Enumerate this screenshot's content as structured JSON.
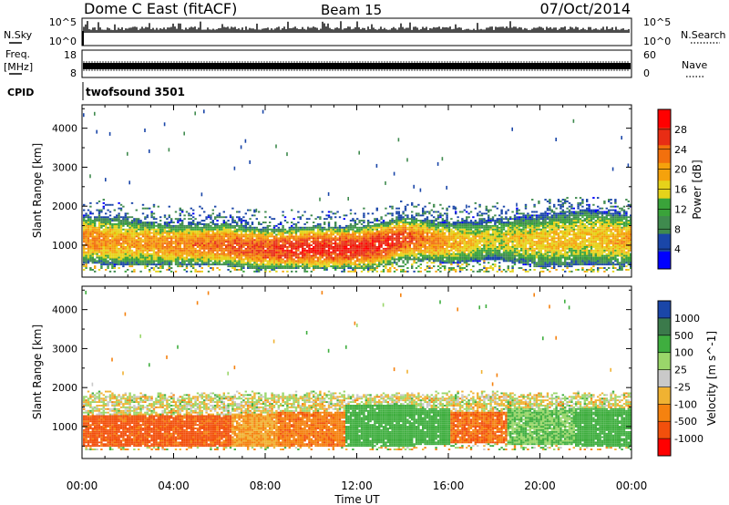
{
  "header": {
    "station": "Dome C East (fitACF)",
    "beam": "Beam 15",
    "date": "07/Oct/2014"
  },
  "noise_panel": {
    "left_label": "N.Sky",
    "right_label": "N.Search",
    "left_ticks": [
      "10^5",
      "10^0"
    ],
    "right_ticks": [
      "10^5",
      "10^0"
    ]
  },
  "freq_panel": {
    "left_label": "Freq.",
    "left_unit": "[MHz]",
    "right_label": "Nave",
    "left_ticks": [
      "18",
      "8"
    ],
    "right_ticks": [
      "60",
      "0"
    ]
  },
  "cpid": {
    "label": "CPID",
    "value": "twofsound 3501"
  },
  "colors": {
    "power_scale": [
      "#0000ff",
      "#1a46a8",
      "#3f8a4e",
      "#3aa33a",
      "#e6d31a",
      "#f5a20c",
      "#f2700d",
      "#e82d14",
      "#ff0000"
    ],
    "velocity_scale": [
      "#ff0000",
      "#f2500c",
      "#f5820f",
      "#f0b232",
      "#c9c9c9",
      "#9ad66a",
      "#3fae3f",
      "#3b7a4b",
      "#1a46a8"
    ]
  },
  "chart_data": [
    {
      "type": "heatmap",
      "title": "Power",
      "ylabel": "Slant Range [km]",
      "xlabel": "Time UT",
      "x_ticks": [
        "00:00",
        "04:00",
        "08:00",
        "12:00",
        "16:00",
        "20:00",
        "00:00"
      ],
      "x_range_hours": [
        0,
        24
      ],
      "y_ticks": [
        1000,
        2000,
        3000,
        4000
      ],
      "ylim": [
        180,
        4600
      ],
      "colorbar": {
        "label": "Power [dB]",
        "ticks": [
          "4",
          "8",
          "12",
          "16",
          "20",
          "24",
          "28"
        ],
        "range": [
          0,
          32
        ]
      },
      "main_band": [
        {
          "t": 0,
          "lo": 500,
          "hi": 1750,
          "power": 22
        },
        {
          "t": 2,
          "lo": 450,
          "hi": 1650,
          "power": 20
        },
        {
          "t": 4,
          "lo": 450,
          "hi": 1500,
          "power": 22
        },
        {
          "t": 6,
          "lo": 450,
          "hi": 1550,
          "power": 24
        },
        {
          "t": 8,
          "lo": 350,
          "hi": 1400,
          "power": 26
        },
        {
          "t": 10,
          "lo": 350,
          "hi": 1450,
          "power": 28
        },
        {
          "t": 12,
          "lo": 350,
          "hi": 1450,
          "power": 28
        },
        {
          "t": 13,
          "lo": 400,
          "hi": 1550,
          "power": 28
        },
        {
          "t": 14,
          "lo": 600,
          "hi": 1700,
          "power": 26
        },
        {
          "t": 16,
          "lo": 500,
          "hi": 1550,
          "power": 20
        },
        {
          "t": 18,
          "lo": 600,
          "hi": 1650,
          "power": 16
        },
        {
          "t": 20,
          "lo": 400,
          "hi": 1750,
          "power": 18
        },
        {
          "t": 22,
          "lo": 450,
          "hi": 1900,
          "power": 18
        },
        {
          "t": 24,
          "lo": 450,
          "hi": 1750,
          "power": 20
        }
      ]
    },
    {
      "type": "heatmap",
      "title": "Velocity",
      "ylabel": "Slant Range [km]",
      "xlabel": "Time UT",
      "x_ticks": [
        "00:00",
        "04:00",
        "08:00",
        "12:00",
        "16:00",
        "20:00",
        "00:00"
      ],
      "x_range_hours": [
        0,
        24
      ],
      "y_ticks": [
        1000,
        2000,
        3000,
        4000
      ],
      "ylim": [
        180,
        4600
      ],
      "colorbar": {
        "label": "Velocity [m s^-1]",
        "ticks": [
          "1000",
          "500",
          "100",
          "25",
          "-25",
          "-100",
          "-500",
          "-1000"
        ]
      },
      "segments": [
        {
          "t0": 0,
          "t1": 6.5,
          "lo": 450,
          "hi": 1250,
          "velocity": -400
        },
        {
          "t0": 6.5,
          "t1": 8.5,
          "lo": 450,
          "hi": 1300,
          "velocity": -60
        },
        {
          "t0": 8.5,
          "t1": 11.5,
          "lo": 450,
          "hi": 1350,
          "velocity": -250
        },
        {
          "t0": 11.5,
          "t1": 14.5,
          "lo": 450,
          "hi": 1550,
          "velocity": 150
        },
        {
          "t0": 14.5,
          "t1": 16,
          "lo": 500,
          "hi": 1450,
          "velocity": 200
        },
        {
          "t0": 16,
          "t1": 18.5,
          "lo": 550,
          "hi": 1350,
          "velocity": -300
        },
        {
          "t0": 18.5,
          "t1": 21.5,
          "lo": 500,
          "hi": 1450,
          "velocity": 60
        },
        {
          "t0": 21.5,
          "t1": 24,
          "lo": 450,
          "hi": 1450,
          "velocity": 120
        }
      ],
      "upper_band": {
        "lo": 1250,
        "hi": 1750,
        "velocity": 0
      }
    }
  ]
}
